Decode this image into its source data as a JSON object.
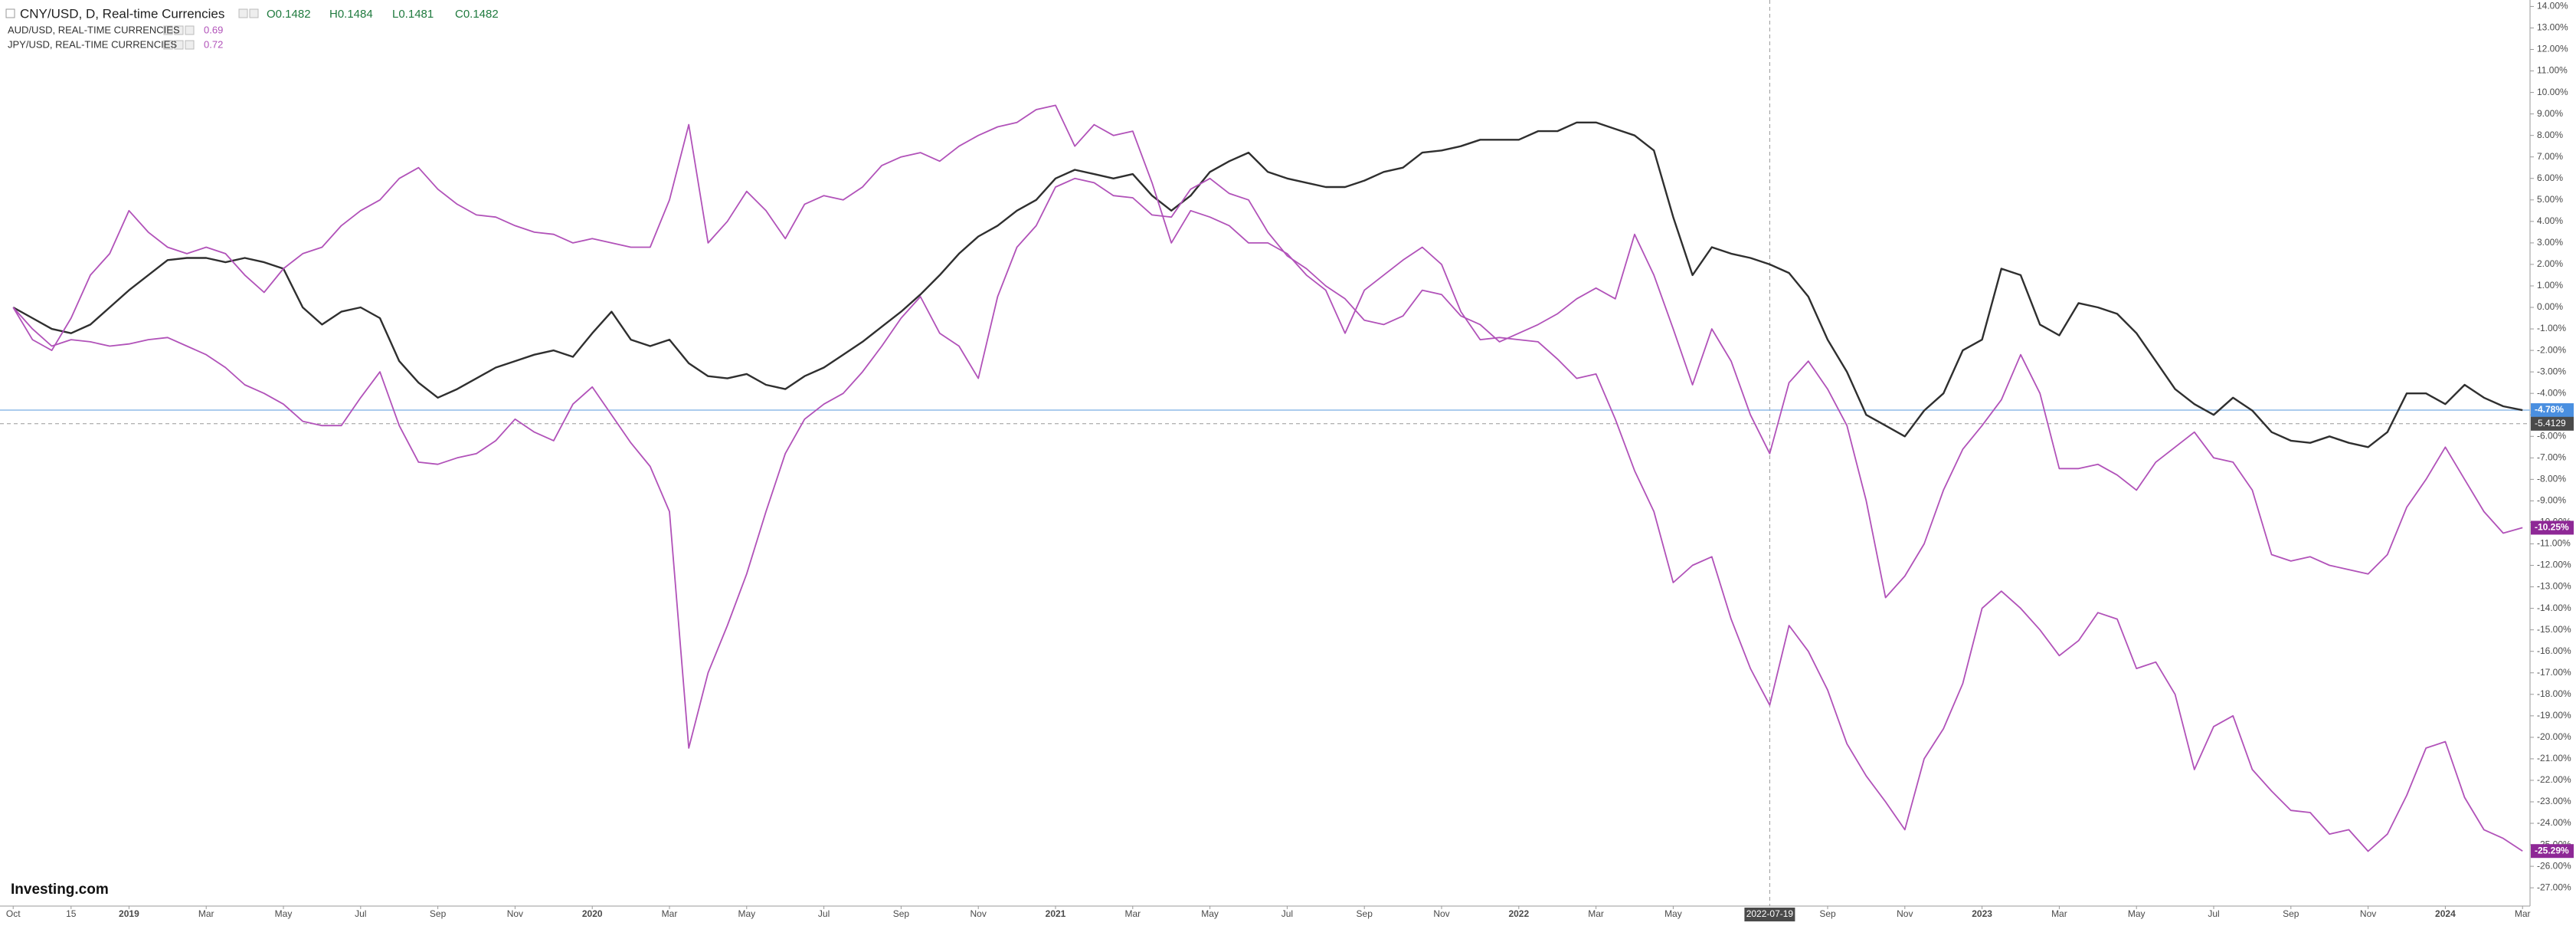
{
  "chart_data": {
    "type": "line",
    "header_values": [
      "O0.1482",
      "H0.1484",
      "L0.1481",
      "C0.1482"
    ],
    "watermark": "Investing.com",
    "categories": [
      "Oct",
      null,
      null,
      "15",
      null,
      null,
      "2019",
      null,
      null,
      null,
      "Mar",
      null,
      null,
      null,
      "May",
      null,
      null,
      null,
      "Jul",
      null,
      null,
      null,
      "Sep",
      null,
      null,
      null,
      "Nov",
      null,
      null,
      null,
      "2020",
      null,
      null,
      null,
      "Mar",
      null,
      null,
      null,
      "May",
      null,
      null,
      null,
      "Jul",
      null,
      null,
      null,
      "Sep",
      null,
      null,
      null,
      "Nov",
      null,
      null,
      null,
      "2021",
      null,
      null,
      null,
      "Mar",
      null,
      null,
      null,
      "May",
      null,
      null,
      null,
      "Jul",
      null,
      null,
      null,
      "Sep",
      null,
      null,
      null,
      "Nov",
      null,
      null,
      null,
      "2022",
      null,
      null,
      null,
      "Mar",
      null,
      null,
      null,
      "May",
      null,
      null,
      null,
      null,
      "2022-07-19",
      null,
      null,
      "Sep",
      null,
      null,
      null,
      "Nov",
      null,
      null,
      null,
      "2023",
      null,
      null,
      null,
      "Mar",
      null,
      null,
      null,
      "May",
      null,
      null,
      null,
      "Jul",
      null,
      null,
      null,
      "Sep",
      null,
      null,
      null,
      "Nov",
      null,
      null,
      null,
      "2024",
      null,
      null,
      null,
      "Mar"
    ],
    "series": [
      {
        "name": "CNY/USD, D, Real-time Currencies",
        "color": "#2f2f2f",
        "last_label": {
          "value": -4.78,
          "label": "-4.78%"
        },
        "label_color": "#4a8fe0",
        "values": [
          0,
          -0.5,
          -1,
          -1.2,
          -0.8,
          0,
          0.8,
          1.5,
          2.2,
          2.3,
          2.3,
          2.1,
          2.3,
          2.1,
          1.8,
          0,
          -0.8,
          -0.2,
          0,
          -0.5,
          -2.5,
          -3.5,
          -4.2,
          -3.8,
          -3.3,
          -2.8,
          -2.5,
          -2.2,
          -2,
          -2.3,
          -1.2,
          -0.2,
          -1.5,
          -1.8,
          -1.5,
          -2.6,
          -3.2,
          -3.3,
          -3.1,
          -3.6,
          -3.8,
          -3.2,
          -2.8,
          -2.2,
          -1.6,
          -0.9,
          -0.2,
          0.6,
          1.5,
          2.5,
          3.3,
          3.8,
          4.5,
          5,
          6,
          6.4,
          6.2,
          6,
          6.2,
          5.2,
          4.5,
          5.2,
          6.3,
          6.8,
          7.2,
          6.3,
          6,
          5.8,
          5.6,
          5.6,
          5.9,
          6.3,
          6.5,
          7.2,
          7.3,
          7.5,
          7.8,
          7.8,
          7.8,
          8.2,
          8.2,
          8.6,
          8.6,
          8.3,
          8,
          7.3,
          4.2,
          1.5,
          2.8,
          2.5,
          2.3,
          2,
          1.6,
          0.5,
          -1.5,
          -3,
          -5,
          -5.5,
          -6,
          -4.8,
          -4,
          -2,
          -1.5,
          1.8,
          1.5,
          -0.8,
          -1.3,
          0.2,
          0,
          -0.3,
          -1.2,
          -2.5,
          -3.8,
          -4.5,
          -5,
          -4.2,
          -4.8,
          -5.8,
          -6.2,
          -6.3,
          -6,
          -6.3,
          -6.5,
          -5.8,
          -4,
          -4,
          -4.5,
          -3.6,
          -4.2,
          -4.6,
          -4.78
        ]
      },
      {
        "name": "AUD/USD, REAL-TIME CURRENCIES",
        "legend_value": 0.69,
        "color": "#b152b9",
        "last_label": {
          "value": -10.25,
          "label": "-10.25%"
        },
        "label_color": "#8e2896",
        "values": [
          0,
          -1,
          -1.8,
          -1.5,
          -1.6,
          -1.8,
          -1.7,
          -1.5,
          -1.4,
          -1.8,
          -2.2,
          -2.8,
          -3.6,
          -4,
          -4.5,
          -5.3,
          -5.5,
          -5.5,
          -4.2,
          -3,
          -5.5,
          -7.2,
          -7.3,
          -7,
          -6.8,
          -6.2,
          -5.2,
          -5.8,
          -6.2,
          -4.5,
          -3.7,
          -5,
          -6.3,
          -7.4,
          -9.5,
          -20.5,
          -17,
          -14.8,
          -12.4,
          -9.5,
          -6.8,
          -5.2,
          -4.5,
          -4,
          -3,
          -1.8,
          -0.5,
          0.5,
          -1.2,
          -1.8,
          -3.3,
          0.5,
          2.8,
          3.8,
          5.6,
          6,
          5.8,
          5.2,
          5.1,
          4.3,
          4.2,
          5.5,
          6,
          5.3,
          5,
          3.5,
          2.4,
          1.8,
          1,
          0.4,
          -0.6,
          -0.8,
          -0.4,
          0.8,
          0.6,
          -0.4,
          -0.8,
          -1.6,
          -1.2,
          -0.8,
          -0.3,
          0.4,
          0.9,
          0.4,
          3.4,
          1.5,
          -1,
          -3.6,
          -1,
          -2.5,
          -5,
          -6.8,
          -3.5,
          -2.5,
          -3.8,
          -5.5,
          -9,
          -13.5,
          -12.5,
          -11,
          -8.5,
          -6.6,
          -5.5,
          -4.3,
          -2.2,
          -4,
          -7.5,
          -7.5,
          -7.3,
          -7.8,
          -8.5,
          -7.2,
          -6.5,
          -5.8,
          -7,
          -7.2,
          -8.5,
          -11.5,
          -11.8,
          -11.6,
          -12,
          -12.2,
          -12.4,
          -11.5,
          -9.3,
          -8,
          -6.5,
          -8,
          -9.5,
          -10.5,
          -10.25
        ]
      },
      {
        "name": "JPY/USD, REAL-TIME CURRENCIES",
        "legend_value": 0.72,
        "color": "#b152b9",
        "last_label": {
          "value": -25.29,
          "label": "-25.29%"
        },
        "label_color": "#8e2896",
        "values": [
          0,
          -1.5,
          -2,
          -0.5,
          1.5,
          2.5,
          4.5,
          3.5,
          2.8,
          2.5,
          2.8,
          2.5,
          1.5,
          0.7,
          1.8,
          2.5,
          2.8,
          3.8,
          4.5,
          5,
          6,
          6.5,
          5.5,
          4.8,
          4.3,
          4.2,
          3.8,
          3.5,
          3.4,
          3,
          3.2,
          3,
          2.8,
          2.8,
          5,
          8.5,
          3,
          4,
          5.4,
          4.5,
          3.2,
          4.8,
          5.2,
          5,
          5.6,
          6.6,
          7,
          7.2,
          6.8,
          7.5,
          8,
          8.4,
          8.6,
          9.2,
          9.4,
          7.5,
          8.5,
          8,
          8.2,
          5.8,
          3,
          4.5,
          4.2,
          3.8,
          3,
          3,
          2.5,
          1.5,
          0.8,
          -1.2,
          0.8,
          1.5,
          2.2,
          2.8,
          2,
          -0.2,
          -1.5,
          -1.4,
          -1.5,
          -1.6,
          -2.4,
          -3.3,
          -3.1,
          -5.2,
          -7.6,
          -9.5,
          -12.8,
          -12,
          -11.6,
          -14.5,
          -16.8,
          -18.5,
          -14.8,
          -16,
          -17.8,
          -20.3,
          -21.8,
          -23,
          -24.3,
          -21,
          -19.6,
          -17.5,
          -14,
          -13.2,
          -14,
          -15,
          -16.2,
          -15.5,
          -14.2,
          -14.5,
          -16.8,
          -16.5,
          -18,
          -21.5,
          -19.5,
          -19,
          -21.5,
          -22.5,
          -23.4,
          -23.5,
          -24.5,
          -24.3,
          -25.3,
          -24.5,
          -22.7,
          -20.5,
          -20.2,
          -22.8,
          -24.3,
          -24.7,
          -25.29
        ]
      }
    ],
    "crosshair": {
      "value": -5.4129,
      "label": "-5.4129"
    },
    "ylim": [
      -27.85,
      14.3
    ],
    "yticks": [
      {
        "value": 14,
        "label": "14.00%"
      },
      {
        "value": 13,
        "label": "13.00%"
      },
      {
        "value": 12,
        "label": "12.00%"
      },
      {
        "value": 11,
        "label": "11.00%"
      },
      {
        "value": 10,
        "label": "10.00%"
      },
      {
        "value": 9,
        "label": "9.00%"
      },
      {
        "value": 8,
        "label": "8.00%"
      },
      {
        "value": 7,
        "label": "7.00%"
      },
      {
        "value": 6,
        "label": "6.00%"
      },
      {
        "value": 5,
        "label": "5.00%"
      },
      {
        "value": 4,
        "label": "4.00%"
      },
      {
        "value": 3,
        "label": "3.00%"
      },
      {
        "value": 2,
        "label": "2.00%"
      },
      {
        "value": 1,
        "label": "1.00%"
      },
      {
        "value": 0,
        "label": "0.00%"
      },
      {
        "value": -1,
        "label": "-1.00%"
      },
      {
        "value": -2,
        "label": "-2.00%"
      },
      {
        "value": -3,
        "label": "-3.00%"
      },
      {
        "value": -4,
        "label": "-4.00%"
      },
      {
        "value": -5,
        "label": "-5.00%"
      },
      {
        "value": -6,
        "label": "-6.00%"
      },
      {
        "value": -7,
        "label": "-7.00%"
      },
      {
        "value": -8,
        "label": "-8.00%"
      },
      {
        "value": -9,
        "label": "-9.00%"
      },
      {
        "value": -10,
        "label": "-10.00%"
      },
      {
        "value": -11,
        "label": "-11.00%"
      },
      {
        "value": -12,
        "label": "-12.00%"
      },
      {
        "value": -13,
        "label": "-13.00%"
      },
      {
        "value": -14,
        "label": "-14.00%"
      },
      {
        "value": -15,
        "label": "-15.00%"
      },
      {
        "value": -16,
        "label": "-16.00%"
      },
      {
        "value": -17,
        "label": "-17.00%"
      },
      {
        "value": -18,
        "label": "-18.00%"
      },
      {
        "value": -19,
        "label": "-19.00%"
      },
      {
        "value": -20,
        "label": "-20.00%"
      },
      {
        "value": -21,
        "label": "-21.00%"
      },
      {
        "value": -22,
        "label": "-22.00%"
      },
      {
        "value": -23,
        "label": "-23.00%"
      },
      {
        "value": -24,
        "label": "-24.00%"
      },
      {
        "value": -25,
        "label": "-25.00%"
      },
      {
        "value": -26,
        "label": "-26.00%"
      },
      {
        "value": -27,
        "label": "-27.00%"
      }
    ],
    "grid": false
  }
}
